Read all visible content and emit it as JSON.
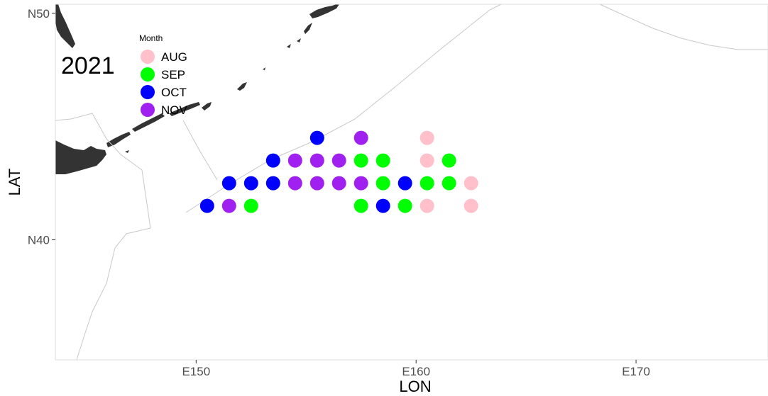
{
  "chart_data": {
    "type": "scatter",
    "xlabel": "LON",
    "ylabel": "LAT",
    "annotation": "2021",
    "xlim": [
      143.6,
      176
    ],
    "ylim": [
      34.7,
      50.4
    ],
    "x_ticks": [
      {
        "value": 150,
        "label": "E150"
      },
      {
        "value": 160,
        "label": "E160"
      },
      {
        "value": 170,
        "label": "E170"
      }
    ],
    "y_ticks": [
      {
        "value": 40,
        "label": "N40"
      },
      {
        "value": 50,
        "label": "N50"
      }
    ],
    "grid": false,
    "legend": {
      "title": "Month",
      "position": "top-left",
      "entries": [
        {
          "label": "AUG",
          "color": "#ffc0cb"
        },
        {
          "label": "SEP",
          "color": "#00ff00"
        },
        {
          "label": "OCT",
          "color": "#0000ff"
        },
        {
          "label": "NOV",
          "color": "#a020f0"
        }
      ]
    },
    "series": [
      {
        "name": "AUG",
        "color": "#ffc0cb",
        "points": [
          [
            160.5,
            44.5
          ],
          [
            160.5,
            43.5
          ],
          [
            162.5,
            42.5
          ],
          [
            160.5,
            41.5
          ],
          [
            162.5,
            41.5
          ]
        ]
      },
      {
        "name": "SEP",
        "color": "#00ff00",
        "points": [
          [
            157.5,
            43.5
          ],
          [
            158.5,
            43.5
          ],
          [
            161.5,
            43.5
          ],
          [
            158.5,
            42.5
          ],
          [
            160.5,
            42.5
          ],
          [
            161.5,
            42.5
          ],
          [
            152.5,
            41.5
          ],
          [
            157.5,
            41.5
          ],
          [
            159.5,
            41.5
          ]
        ]
      },
      {
        "name": "OCT",
        "color": "#0000ff",
        "points": [
          [
            155.5,
            44.5
          ],
          [
            153.5,
            43.5
          ],
          [
            151.5,
            42.5
          ],
          [
            152.5,
            42.5
          ],
          [
            153.5,
            42.5
          ],
          [
            159.5,
            42.5
          ],
          [
            150.5,
            41.5
          ],
          [
            158.5,
            41.5
          ]
        ]
      },
      {
        "name": "NOV",
        "color": "#a020f0",
        "points": [
          [
            157.5,
            44.5
          ],
          [
            154.5,
            43.5
          ],
          [
            155.5,
            43.5
          ],
          [
            156.5,
            43.5
          ],
          [
            154.5,
            42.5
          ],
          [
            155.5,
            42.5
          ],
          [
            156.5,
            42.5
          ],
          [
            157.5,
            42.5
          ],
          [
            151.5,
            41.5
          ]
        ]
      }
    ]
  }
}
